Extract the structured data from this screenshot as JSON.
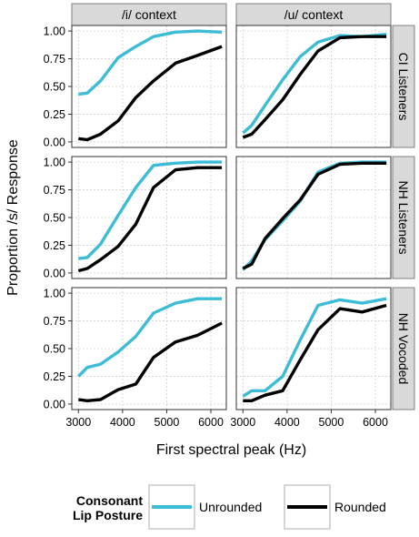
{
  "chart_data": {
    "type": "line",
    "xlabel": "First spectral peak (Hz)",
    "ylabel": "Proportion /s/ Response",
    "xlim": [
      2850,
      6350
    ],
    "ylim": [
      -0.05,
      1.05
    ],
    "x_ticks": [
      3000,
      4000,
      5000,
      6000
    ],
    "x_tick_labels": [
      "3000",
      "4000",
      "5000",
      "6000"
    ],
    "y_ticks": [
      0,
      0.25,
      0.5,
      0.75,
      1.0
    ],
    "y_tick_labels": [
      "0.00",
      "0.25",
      "0.50",
      "0.75",
      "1.00"
    ],
    "grid": true,
    "columns": [
      "/i/ context",
      "/u/ context"
    ],
    "rows": [
      "CI Listeners",
      "NH Listeners",
      "NH Vocoded"
    ],
    "x": [
      3000,
      3200,
      3500,
      3900,
      4300,
      4700,
      5200,
      5700,
      6250
    ],
    "series_styles": [
      {
        "name": "Unrounded",
        "color": "#3dbcd6"
      },
      {
        "name": "Rounded",
        "color": "#000000"
      }
    ],
    "legend": {
      "title_line1": "Consonant",
      "title_line2": "Lip Posture",
      "items": [
        {
          "label": "Unrounded",
          "color": "#3dbcd6"
        },
        {
          "label": "Rounded",
          "color": "#000000"
        }
      ],
      "position": "bottom"
    },
    "panels": [
      {
        "row": 0,
        "col": 0,
        "series": [
          {
            "name": "Unrounded",
            "values": [
              0.43,
              0.44,
              0.55,
              0.76,
              0.86,
              0.95,
              0.99,
              1.0,
              0.99
            ]
          },
          {
            "name": "Rounded",
            "values": [
              0.03,
              0.02,
              0.07,
              0.19,
              0.4,
              0.55,
              0.71,
              0.78,
              0.86
            ]
          }
        ]
      },
      {
        "row": 0,
        "col": 1,
        "series": [
          {
            "name": "Unrounded",
            "values": [
              0.08,
              0.15,
              0.33,
              0.56,
              0.77,
              0.9,
              0.96,
              0.95,
              0.97
            ]
          },
          {
            "name": "Rounded",
            "values": [
              0.04,
              0.07,
              0.2,
              0.38,
              0.61,
              0.82,
              0.94,
              0.95,
              0.95
            ]
          }
        ]
      },
      {
        "row": 1,
        "col": 0,
        "series": [
          {
            "name": "Unrounded",
            "values": [
              0.13,
              0.14,
              0.26,
              0.52,
              0.77,
              0.97,
              0.99,
              1.0,
              1.0
            ]
          },
          {
            "name": "Rounded",
            "values": [
              0.02,
              0.04,
              0.12,
              0.24,
              0.44,
              0.77,
              0.93,
              0.95,
              0.95
            ]
          }
        ]
      },
      {
        "row": 1,
        "col": 1,
        "series": [
          {
            "name": "Unrounded",
            "values": [
              0.03,
              0.11,
              0.3,
              0.47,
              0.65,
              0.91,
              0.99,
              1.0,
              1.0
            ]
          },
          {
            "name": "Rounded",
            "values": [
              0.04,
              0.08,
              0.31,
              0.49,
              0.66,
              0.89,
              0.98,
              0.99,
              0.99
            ]
          }
        ]
      },
      {
        "row": 2,
        "col": 0,
        "series": [
          {
            "name": "Unrounded",
            "values": [
              0.25,
              0.33,
              0.36,
              0.47,
              0.61,
              0.82,
              0.91,
              0.95,
              0.95
            ]
          },
          {
            "name": "Rounded",
            "values": [
              0.04,
              0.03,
              0.04,
              0.13,
              0.18,
              0.42,
              0.56,
              0.62,
              0.73
            ]
          }
        ]
      },
      {
        "row": 2,
        "col": 1,
        "series": [
          {
            "name": "Unrounded",
            "values": [
              0.07,
              0.12,
              0.12,
              0.25,
              0.58,
              0.89,
              0.94,
              0.91,
              0.95
            ]
          },
          {
            "name": "Rounded",
            "values": [
              0.03,
              0.03,
              0.08,
              0.12,
              0.4,
              0.67,
              0.86,
              0.83,
              0.89
            ]
          }
        ]
      }
    ]
  }
}
